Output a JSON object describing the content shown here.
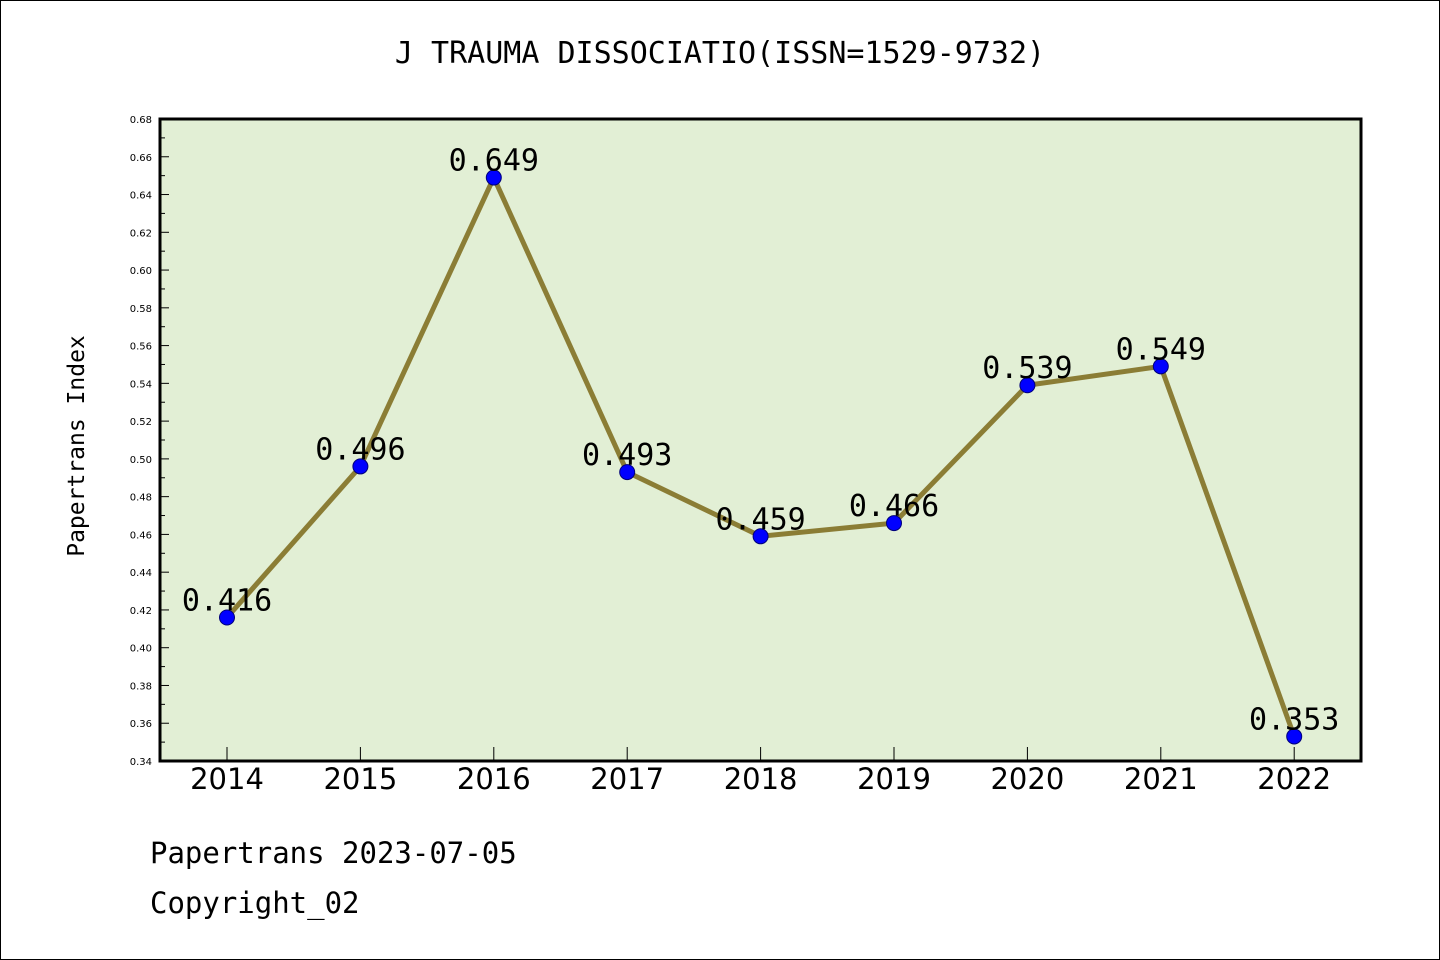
{
  "footer": {
    "line1": "Papertrans 2023-07-05",
    "line2": "Copyright_02"
  },
  "chart_data": {
    "type": "line",
    "title": "J TRAUMA DISSOCIATIO(ISSN=1529-9732)",
    "xlabel": "",
    "ylabel": "Papertrans Index",
    "categories": [
      "2014",
      "2015",
      "2016",
      "2017",
      "2018",
      "2019",
      "2020",
      "2021",
      "2022"
    ],
    "values": [
      0.416,
      0.496,
      0.649,
      0.493,
      0.459,
      0.466,
      0.539,
      0.549,
      0.353
    ],
    "data_labels": [
      "0.416",
      "0.496",
      "0.649",
      "0.493",
      "0.459",
      "0.466",
      "0.539",
      "0.549",
      "0.353"
    ],
    "ylim": [
      0.34,
      0.68
    ],
    "yticks": [
      "0.34",
      "0.36",
      "0.38",
      "0.40",
      "0.42",
      "0.44",
      "0.46",
      "0.48",
      "0.50",
      "0.52",
      "0.54",
      "0.56",
      "0.58",
      "0.60",
      "0.62",
      "0.64",
      "0.66",
      "0.68"
    ],
    "grid": false,
    "colors": {
      "plot_background": "#e2efd5",
      "line": "#8b7d35",
      "marker": "#0000ff"
    }
  }
}
